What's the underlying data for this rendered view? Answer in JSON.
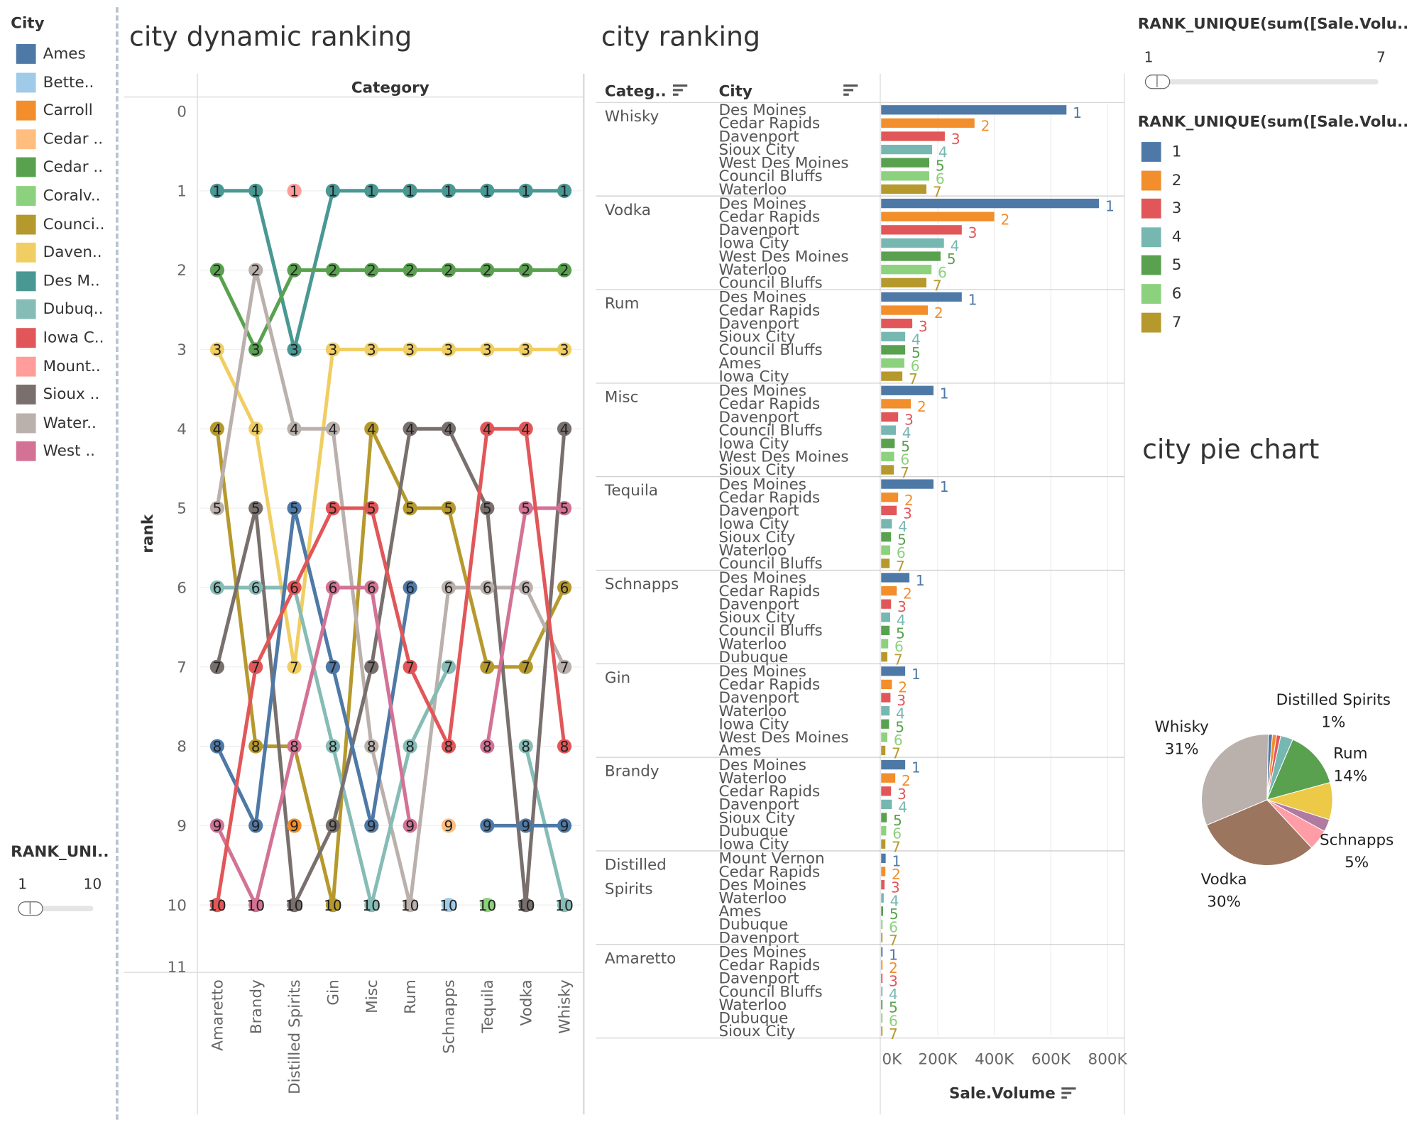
{
  "colors": {
    "ames": "#4e79a7",
    "bettendorf": "#a0cbe8",
    "carroll": "#f28e2b",
    "cedar_falls": "#ffbe7d",
    "cedar_rapids": "#59a14f",
    "coralville": "#8cd17d",
    "council_bluffs": "#b6992d",
    "davenport": "#f1ce63",
    "des_moines": "#499894",
    "dubuque": "#86bcb6",
    "iowa_city": "#e15759",
    "mount_vernon": "#ff9d9a",
    "sioux_city": "#79706e",
    "waterloo": "#bab0ac",
    "west_des_moines": "#d37295",
    "rank1": "#4e79a7",
    "rank2": "#f28e2b",
    "rank3": "#e15759",
    "rank4": "#76b7b2",
    "rank5": "#59a14f",
    "rank6": "#8cd17d",
    "rank7": "#b6992d"
  },
  "city_legend": {
    "title": "City",
    "items": [
      {
        "label": "Ames",
        "key": "ames"
      },
      {
        "label": "Bette..",
        "key": "bettendorf"
      },
      {
        "label": "Carroll",
        "key": "carroll"
      },
      {
        "label": "Cedar ..",
        "key": "cedar_falls"
      },
      {
        "label": "Cedar ..",
        "key": "cedar_rapids"
      },
      {
        "label": "Coralv..",
        "key": "coralville"
      },
      {
        "label": "Counci..",
        "key": "council_bluffs"
      },
      {
        "label": "Daven..",
        "key": "davenport"
      },
      {
        "label": "Des M..",
        "key": "des_moines"
      },
      {
        "label": "Dubuq..",
        "key": "dubuque"
      },
      {
        "label": "Iowa C..",
        "key": "iowa_city"
      },
      {
        "label": "Mount..",
        "key": "mount_vernon"
      },
      {
        "label": "Sioux ..",
        "key": "sioux_city"
      },
      {
        "label": "Water..",
        "key": "waterloo"
      },
      {
        "label": "West ..",
        "key": "west_des_moines"
      }
    ]
  },
  "left_filter": {
    "title": "RANK_UNI..",
    "min": "1",
    "max": "10"
  },
  "dynamic_title": "city dynamic ranking",
  "ranking_title": "city ranking",
  "pie_title": "city pie chart",
  "right_filter": {
    "title": "RANK_UNIQUE(sum([Sale.Volu..",
    "min": "1",
    "max": "7"
  },
  "rank_legend": {
    "title": "RANK_UNIQUE(sum([Sale.Volu..",
    "items": [
      "1",
      "2",
      "3",
      "4",
      "5",
      "6",
      "7"
    ]
  },
  "bump_chart": {
    "type": "line",
    "column_header": "Category",
    "ylabel": "rank",
    "y_ticks": [
      "0",
      "1",
      "2",
      "3",
      "4",
      "5",
      "6",
      "7",
      "8",
      "9",
      "10",
      "11"
    ],
    "categories": [
      "Amaretto",
      "Brandy",
      "Distilled Spirits",
      "Gin",
      "Misc",
      "Rum",
      "Schnapps",
      "Tequila",
      "Vodka",
      "Whisky"
    ],
    "series": [
      {
        "name": "Des Moines",
        "key": "des_moines",
        "ranks": [
          1,
          1,
          3,
          1,
          1,
          1,
          1,
          1,
          1,
          1
        ]
      },
      {
        "name": "Cedar Rapids",
        "key": "cedar_rapids",
        "ranks": [
          2,
          3,
          2,
          2,
          2,
          2,
          2,
          2,
          2,
          2
        ]
      },
      {
        "name": "Davenport",
        "key": "davenport",
        "ranks": [
          3,
          4,
          7,
          3,
          3,
          3,
          3,
          3,
          3,
          3
        ]
      },
      {
        "name": "Council Bluffs",
        "key": "council_bluffs",
        "ranks": [
          4,
          8,
          8,
          10,
          4,
          5,
          5,
          7,
          7,
          6
        ]
      },
      {
        "name": "Waterloo",
        "key": "waterloo",
        "ranks": [
          5,
          2,
          4,
          4,
          8,
          10,
          6,
          6,
          6,
          7
        ]
      },
      {
        "name": "Dubuque",
        "key": "dubuque",
        "ranks": [
          6,
          6,
          6,
          8,
          10,
          8,
          7,
          null,
          8,
          10
        ]
      },
      {
        "name": "Sioux City",
        "key": "sioux_city",
        "ranks": [
          7,
          5,
          10,
          9,
          7,
          4,
          4,
          5,
          10,
          4
        ]
      },
      {
        "name": "Ames",
        "key": "ames",
        "ranks": [
          8,
          9,
          5,
          7,
          9,
          6,
          null,
          9,
          9,
          9
        ]
      },
      {
        "name": "West Des Moines",
        "key": "west_des_moines",
        "ranks": [
          9,
          10,
          8,
          6,
          6,
          9,
          null,
          8,
          5,
          5
        ]
      },
      {
        "name": "Iowa City",
        "key": "iowa_city",
        "ranks": [
          10,
          7,
          6,
          5,
          5,
          7,
          8,
          4,
          4,
          8
        ]
      },
      {
        "name": "Mount Vernon",
        "key": "mount_vernon",
        "ranks": [
          null,
          null,
          1,
          null,
          null,
          null,
          null,
          null,
          null,
          null
        ]
      },
      {
        "name": "Carroll",
        "key": "carroll",
        "ranks": [
          null,
          null,
          9,
          null,
          null,
          null,
          null,
          null,
          null,
          null
        ]
      },
      {
        "name": "Cedar Falls",
        "key": "cedar_falls",
        "ranks": [
          null,
          null,
          null,
          null,
          null,
          null,
          9,
          null,
          null,
          null
        ]
      },
      {
        "name": "Bettendorf",
        "key": "bettendorf",
        "ranks": [
          null,
          null,
          null,
          null,
          null,
          null,
          10,
          null,
          null,
          null
        ]
      },
      {
        "name": "Coralville",
        "key": "coralville",
        "ranks": [
          null,
          null,
          null,
          null,
          null,
          null,
          null,
          10,
          null,
          null
        ]
      }
    ]
  },
  "bar_chart": {
    "type": "bar",
    "headers": {
      "category": "Categ..",
      "city": "City",
      "axis": "Sale.Volume"
    },
    "x_ticks": [
      "0K",
      "200K",
      "400K",
      "600K",
      "800K"
    ],
    "xlim": [
      0,
      850000
    ],
    "groups": [
      {
        "category": "Whisky",
        "cities": [
          "Des Moines",
          "Cedar Rapids",
          "Davenport",
          "Sioux City",
          "West Des Moines",
          "Council Bluffs",
          "Waterloo"
        ],
        "values": [
          655000,
          330000,
          225000,
          180000,
          170000,
          170000,
          160000
        ]
      },
      {
        "category": "Vodka",
        "cities": [
          "Des Moines",
          "Cedar Rapids",
          "Davenport",
          "Iowa City",
          "West Des Moines",
          "Waterloo",
          "Council Bluffs"
        ],
        "values": [
          770000,
          400000,
          285000,
          222000,
          210000,
          178000,
          160000
        ]
      },
      {
        "category": "Rum",
        "cities": [
          "Des Moines",
          "Cedar Rapids",
          "Davenport",
          "Sioux City",
          "Council Bluffs",
          "Ames",
          "Iowa City"
        ],
        "values": [
          285000,
          165000,
          110000,
          85000,
          85000,
          82000,
          75000
        ]
      },
      {
        "category": "Misc",
        "cities": [
          "Des Moines",
          "Cedar Rapids",
          "Davenport",
          "Council Bluffs",
          "Iowa City",
          "West Des Moines",
          "Sioux City"
        ],
        "values": [
          185000,
          105000,
          60000,
          52000,
          48000,
          46000,
          45000
        ]
      },
      {
        "category": "Tequila",
        "cities": [
          "Des Moines",
          "Cedar Rapids",
          "Davenport",
          "Iowa City",
          "Sioux City",
          "Waterloo",
          "Council Bluffs"
        ],
        "values": [
          185000,
          60000,
          55000,
          38000,
          35000,
          32000,
          30000
        ]
      },
      {
        "category": "Schnapps",
        "cities": [
          "Des Moines",
          "Cedar Rapids",
          "Davenport",
          "Sioux City",
          "Council Bluffs",
          "Waterloo",
          "Dubuque"
        ],
        "values": [
          100000,
          55000,
          35000,
          32000,
          30000,
          25000,
          22000
        ]
      },
      {
        "category": "Gin",
        "cities": [
          "Des Moines",
          "Cedar Rapids",
          "Davenport",
          "Waterloo",
          "Iowa City",
          "West Des Moines",
          "Ames"
        ],
        "values": [
          85000,
          38000,
          33000,
          30000,
          28000,
          22000,
          15000
        ]
      },
      {
        "category": "Brandy",
        "cities": [
          "Des Moines",
          "Waterloo",
          "Cedar Rapids",
          "Davenport",
          "Sioux City",
          "Dubuque",
          "Iowa City"
        ],
        "values": [
          85000,
          50000,
          35000,
          38000,
          20000,
          18000,
          15000
        ]
      },
      {
        "category": "Distilled Spirits",
        "cities": [
          "Mount Vernon",
          "Cedar Rapids",
          "Des Moines",
          "Waterloo",
          "Ames",
          "Dubuque",
          "Davenport"
        ],
        "values": [
          16000,
          15000,
          12000,
          9000,
          7000,
          5000,
          3000
        ]
      },
      {
        "category": "Amaretto",
        "cities": [
          "Des Moines",
          "Cedar Rapids",
          "Davenport",
          "Council Bluffs",
          "Waterloo",
          "Dubuque",
          "Sioux City"
        ],
        "values": [
          5000,
          4000,
          3500,
          3000,
          2500,
          2000,
          1500
        ]
      }
    ]
  },
  "pie_chart": {
    "type": "pie",
    "slices": [
      {
        "name": "Distilled Spirits",
        "share": 0.01,
        "color": "#4e79a7",
        "label": "Distilled Spirits",
        "pct": "1%"
      },
      {
        "name": "Amaretto",
        "share": 0.01,
        "color": "#f28e2b",
        "label": "",
        "pct": ""
      },
      {
        "name": "Brandy",
        "share": 0.01,
        "color": "#e15759",
        "label": "",
        "pct": ""
      },
      {
        "name": "Gin",
        "share": 0.03,
        "color": "#76b7b2",
        "label": "",
        "pct": ""
      },
      {
        "name": "Rum",
        "share": 0.14,
        "color": "#59a14f",
        "label": "Rum",
        "pct": "14%"
      },
      {
        "name": "Misc",
        "share": 0.0,
        "color": "#8cd17d",
        "label": "",
        "pct": ""
      },
      {
        "name": "Tequila",
        "share": 0.09,
        "color": "#edc948",
        "label": "",
        "pct": ""
      },
      {
        "name": "West",
        "share": 0.03,
        "color": "#b07aa1",
        "label": "",
        "pct": ""
      },
      {
        "name": "Schnapps",
        "share": 0.05,
        "color": "#ff9da7",
        "label": "Schnapps",
        "pct": "5%"
      },
      {
        "name": "Vodka",
        "share": 0.3,
        "color": "#9c755f",
        "label": "Vodka",
        "pct": "30%"
      },
      {
        "name": "Whisky",
        "share": 0.31,
        "color": "#bab0ac",
        "label": "Whisky",
        "pct": "31%"
      }
    ]
  }
}
